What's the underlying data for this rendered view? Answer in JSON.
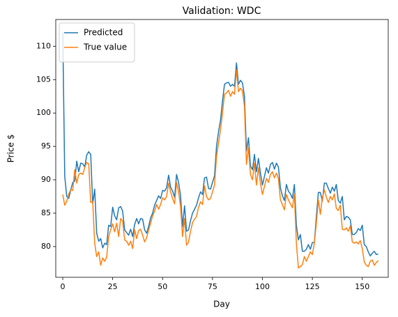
{
  "chart_data": {
    "type": "line",
    "title": "Validation: WDC",
    "xlabel": "Day",
    "ylabel": "Price $",
    "x": [
      0,
      1,
      2,
      3,
      4,
      5,
      6,
      7,
      8,
      9,
      10,
      11,
      12,
      13,
      14,
      15,
      16,
      17,
      18,
      19,
      20,
      21,
      22,
      23,
      24,
      25,
      26,
      27,
      28,
      29,
      30,
      31,
      32,
      33,
      34,
      35,
      36,
      37,
      38,
      39,
      40,
      41,
      42,
      43,
      44,
      45,
      46,
      47,
      48,
      49,
      50,
      51,
      52,
      53,
      54,
      55,
      56,
      57,
      58,
      59,
      60,
      61,
      62,
      63,
      64,
      65,
      66,
      67,
      68,
      69,
      70,
      71,
      72,
      73,
      74,
      75,
      76,
      77,
      78,
      79,
      80,
      81,
      82,
      83,
      84,
      85,
      86,
      87,
      88,
      89,
      90,
      91,
      92,
      93,
      94,
      95,
      96,
      97,
      98,
      99,
      100,
      101,
      102,
      103,
      104,
      105,
      106,
      107,
      108,
      109,
      110,
      111,
      112,
      113,
      114,
      115,
      116,
      117,
      118,
      119,
      120,
      121,
      122,
      123,
      124,
      125,
      126,
      127,
      128,
      129,
      130,
      131,
      132,
      133,
      134,
      135,
      136,
      137,
      138,
      139,
      140,
      141,
      142,
      143,
      144,
      145,
      146,
      147,
      148,
      149,
      150,
      151,
      152,
      153,
      154,
      155,
      156,
      157,
      158
    ],
    "series": [
      {
        "name": "Predicted",
        "color": "#1f77b4",
        "values": [
          112.0,
          90.5,
          87.5,
          87.2,
          88.5,
          89.6,
          89.8,
          92.8,
          91.2,
          92.5,
          92.4,
          91.9,
          93.7,
          94.2,
          93.8,
          86.4,
          88.6,
          82.0,
          80.8,
          81.2,
          79.8,
          80.5,
          80.3,
          83.2,
          83.0,
          85.9,
          84.6,
          84.0,
          85.8,
          86.0,
          85.3,
          82.5,
          82.1,
          81.7,
          82.6,
          81.5,
          83.3,
          84.2,
          83.4,
          84.2,
          84.1,
          82.5,
          82.0,
          83.0,
          84.3,
          85.0,
          86.2,
          86.9,
          87.6,
          87.2,
          88.4,
          88.3,
          88.8,
          90.7,
          88.9,
          88.3,
          87.4,
          90.8,
          89.6,
          87.6,
          83.0,
          86.1,
          82.3,
          82.5,
          83.9,
          85.0,
          85.6,
          86.2,
          87.3,
          88.2,
          87.8,
          90.3,
          90.4,
          88.7,
          88.6,
          89.6,
          90.6,
          95.0,
          97.2,
          98.9,
          101.8,
          104.3,
          104.5,
          104.6,
          104.0,
          104.3,
          104.0,
          107.5,
          104.3,
          104.9,
          104.5,
          102.5,
          94.3,
          96.3,
          92.1,
          91.5,
          93.8,
          91.2,
          93.2,
          91.0,
          89.2,
          90.5,
          91.8,
          91.0,
          92.3,
          92.6,
          91.6,
          92.5,
          91.9,
          88.8,
          87.6,
          86.9,
          89.3,
          88.3,
          87.9,
          87.2,
          89.3,
          83.2,
          81.0,
          81.8,
          79.3,
          79.3,
          79.6,
          80.3,
          79.6,
          80.6,
          80.6,
          84.5,
          88.1,
          88.1,
          86.8,
          89.5,
          89.5,
          88.7,
          88.0,
          88.9,
          88.3,
          89.3,
          86.9,
          86.5,
          87.5,
          84.0,
          84.5,
          84.4,
          84.0,
          81.8,
          81.8,
          82.1,
          82.7,
          82.4,
          83.2,
          80.3,
          80.0,
          79.2,
          78.6,
          79.0,
          79.3,
          78.8,
          78.9
        ]
      },
      {
        "name": "True value",
        "color": "#ff7f0e",
        "values": [
          87.8,
          86.2,
          86.8,
          87.9,
          88.5,
          88.4,
          91.5,
          89.5,
          90.8,
          91.0,
          90.8,
          91.8,
          92.6,
          92.4,
          86.6,
          86.8,
          80.5,
          78.5,
          79.2,
          77.2,
          78.3,
          77.8,
          78.4,
          81.5,
          82.5,
          83.4,
          82.2,
          83.5,
          81.5,
          84.2,
          83.8,
          81.0,
          80.8,
          80.2,
          80.8,
          79.7,
          82.5,
          81.2,
          82.4,
          82.6,
          81.7,
          80.7,
          81.3,
          82.5,
          83.5,
          84.6,
          85.3,
          86.3,
          85.6,
          86.3,
          87.3,
          87.0,
          87.5,
          89.5,
          88.2,
          87.2,
          86.4,
          89.6,
          88.2,
          86.0,
          81.5,
          84.2,
          80.2,
          80.7,
          82.3,
          83.6,
          84.1,
          84.5,
          85.9,
          86.7,
          86.3,
          89.1,
          87.5,
          87.0,
          87.2,
          88.2,
          89.2,
          93.5,
          95.5,
          97.5,
          100.0,
          102.8,
          103.0,
          103.4,
          102.5,
          103.2,
          102.8,
          106.5,
          103.2,
          103.7,
          103.3,
          101.0,
          92.3,
          94.8,
          90.8,
          90.0,
          92.5,
          89.2,
          91.8,
          89.5,
          87.8,
          89.0,
          90.2,
          89.6,
          90.8,
          91.2,
          90.3,
          91.0,
          90.2,
          87.0,
          86.3,
          85.5,
          87.8,
          87.0,
          86.4,
          85.8,
          87.9,
          80.5,
          76.8,
          77.0,
          77.3,
          78.5,
          77.8,
          78.5,
          79.2,
          78.8,
          80.5,
          83.5,
          87.0,
          84.8,
          87.3,
          88.5,
          87.4,
          86.6,
          87.5,
          87.0,
          87.9,
          85.7,
          85.4,
          86.2,
          82.6,
          82.5,
          82.8,
          82.3,
          83.1,
          80.7,
          80.5,
          80.7,
          80.4,
          80.9,
          79.7,
          77.7,
          77.2,
          77.0,
          77.8,
          78.0,
          77.2,
          77.6,
          77.9
        ]
      }
    ],
    "xlim": [
      -3.5,
      163
    ],
    "xticks": [
      0,
      25,
      50,
      75,
      100,
      125,
      150
    ],
    "ylim": [
      75.4,
      114
    ],
    "yticks": [
      80,
      85,
      90,
      95,
      100,
      105,
      110
    ],
    "legend": "upper left"
  }
}
